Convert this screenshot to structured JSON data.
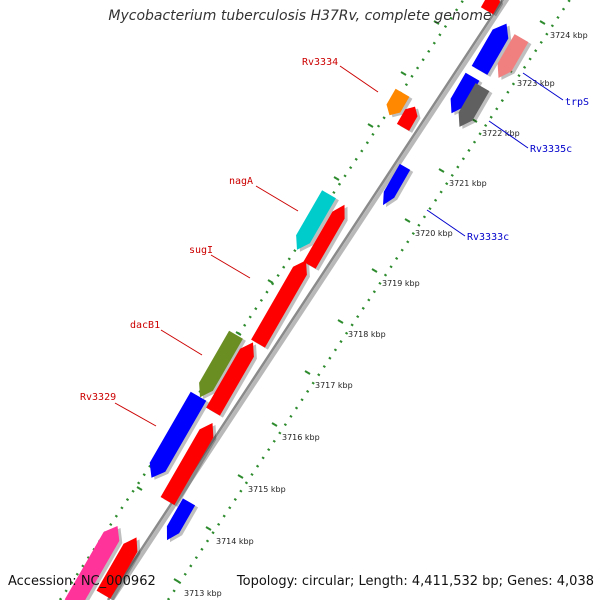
{
  "title": "Mycobacterium tuberculosis H37Rv, complete genome",
  "footer": {
    "accession": "Accession: NC_000962",
    "summary": "Topology: circular; Length: 4,411,532 bp; Genes: 4,038"
  },
  "colors": {
    "backbone": "#8a8a8a",
    "tick": "#2e8b2e",
    "label_forward": "#cc0000",
    "label_reverse": "#0000cc"
  },
  "scale_ticks": [
    "3713 kbp",
    "3714 kbp",
    "3715 kbp",
    "3716 kbp",
    "3717 kbp",
    "3718 kbp",
    "3719 kbp",
    "3720 kbp",
    "3721 kbp",
    "3722 kbp",
    "3723 kbp",
    "3724 kbp"
  ],
  "gene_labels": [
    {
      "name": "Rv3334",
      "strand": "forward"
    },
    {
      "name": "nagA",
      "strand": "forward"
    },
    {
      "name": "sugI",
      "strand": "forward"
    },
    {
      "name": "dacB1",
      "strand": "forward"
    },
    {
      "name": "Rv3329",
      "strand": "forward"
    },
    {
      "name": "trpS",
      "strand": "reverse"
    },
    {
      "name": "Rv3335c",
      "strand": "reverse"
    },
    {
      "name": "Rv3333c",
      "strand": "reverse"
    }
  ],
  "features": [
    {
      "name": "pink-feature",
      "color": "#ff3399"
    },
    {
      "name": "red-feature-bottom",
      "color": "#ff0000"
    },
    {
      "name": "blue-feature-bottom",
      "color": "#0000ff"
    },
    {
      "name": "blue-feature-Rv3329",
      "color": "#0000ff"
    },
    {
      "name": "red-feature-Rv3329",
      "color": "#ff0000"
    },
    {
      "name": "olive-feature-dacB1",
      "color": "#6b8e23"
    },
    {
      "name": "red-feature-dacB1",
      "color": "#ff0000"
    },
    {
      "name": "red-feature-sugI",
      "color": "#ff0000"
    },
    {
      "name": "cyan-feature-nagA",
      "color": "#00cccc"
    },
    {
      "name": "red-feature-nagA",
      "color": "#ff0000"
    },
    {
      "name": "blue-feature-Rv3333c",
      "color": "#0000ff"
    },
    {
      "name": "orange-feature-Rv3334",
      "color": "#ff8800"
    },
    {
      "name": "red-feature-Rv3334",
      "color": "#ff0000"
    },
    {
      "name": "blue-feature-Rv3335c",
      "color": "#0000ff"
    },
    {
      "name": "gray-feature-Rv3335c",
      "color": "#606060"
    },
    {
      "name": "blue-feature-trpS",
      "color": "#0000ff"
    },
    {
      "name": "salmon-feature-trpS",
      "color": "#f08080"
    },
    {
      "name": "red-feature-top",
      "color": "#ff0000"
    }
  ]
}
